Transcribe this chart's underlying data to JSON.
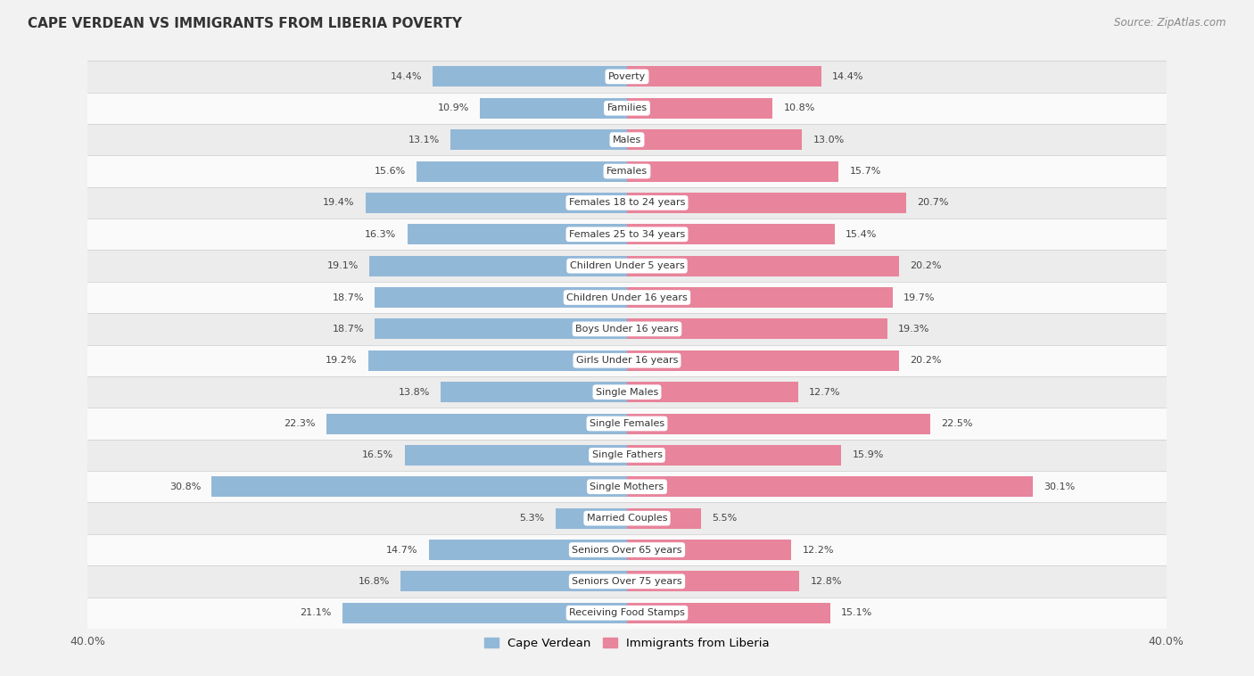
{
  "title": "CAPE VERDEAN VS IMMIGRANTS FROM LIBERIA POVERTY",
  "source": "Source: ZipAtlas.com",
  "categories": [
    "Poverty",
    "Families",
    "Males",
    "Females",
    "Females 18 to 24 years",
    "Females 25 to 34 years",
    "Children Under 5 years",
    "Children Under 16 years",
    "Boys Under 16 years",
    "Girls Under 16 years",
    "Single Males",
    "Single Females",
    "Single Fathers",
    "Single Mothers",
    "Married Couples",
    "Seniors Over 65 years",
    "Seniors Over 75 years",
    "Receiving Food Stamps"
  ],
  "cape_verdean": [
    14.4,
    10.9,
    13.1,
    15.6,
    19.4,
    16.3,
    19.1,
    18.7,
    18.7,
    19.2,
    13.8,
    22.3,
    16.5,
    30.8,
    5.3,
    14.7,
    16.8,
    21.1
  ],
  "liberia": [
    14.4,
    10.8,
    13.0,
    15.7,
    20.7,
    15.4,
    20.2,
    19.7,
    19.3,
    20.2,
    12.7,
    22.5,
    15.9,
    30.1,
    5.5,
    12.2,
    12.8,
    15.1
  ],
  "cape_verdean_color": "#92b8d8",
  "liberia_color": "#e8849b",
  "background_color": "#f2f2f2",
  "row_bg_light": "#fafafa",
  "row_bg_dark": "#ececec",
  "xlim": 40.0,
  "legend_labels": [
    "Cape Verdean",
    "Immigrants from Liberia"
  ],
  "bar_height": 0.65
}
